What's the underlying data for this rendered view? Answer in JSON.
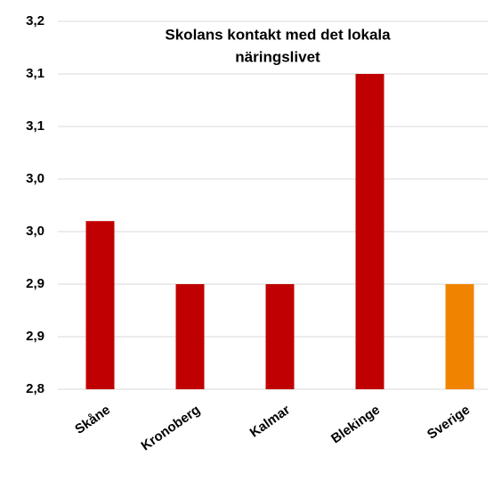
{
  "chart_data": {
    "type": "bar",
    "title": [
      "Skolans kontakt med det lokala",
      "näringslivet"
    ],
    "categories": [
      "Skåne",
      "Kronoberg",
      "Kalmar",
      "Blekinge",
      "Sverige"
    ],
    "values": [
      2.96,
      2.9,
      2.9,
      3.1,
      2.9
    ],
    "colors": [
      "#c00000",
      "#c00000",
      "#c00000",
      "#c00000",
      "#f08400"
    ],
    "ylim": [
      2.8,
      3.15
    ],
    "yticks": [
      {
        "value": 2.8,
        "label": "2,8"
      },
      {
        "value": 2.85,
        "label": "2,9"
      },
      {
        "value": 2.9,
        "label": "2,9"
      },
      {
        "value": 2.95,
        "label": "3,0"
      },
      {
        "value": 3.0,
        "label": "3,0"
      },
      {
        "value": 3.05,
        "label": "3,1"
      },
      {
        "value": 3.1,
        "label": "3,1"
      },
      {
        "value": 3.15,
        "label": "3,2"
      }
    ],
    "grid": true
  }
}
